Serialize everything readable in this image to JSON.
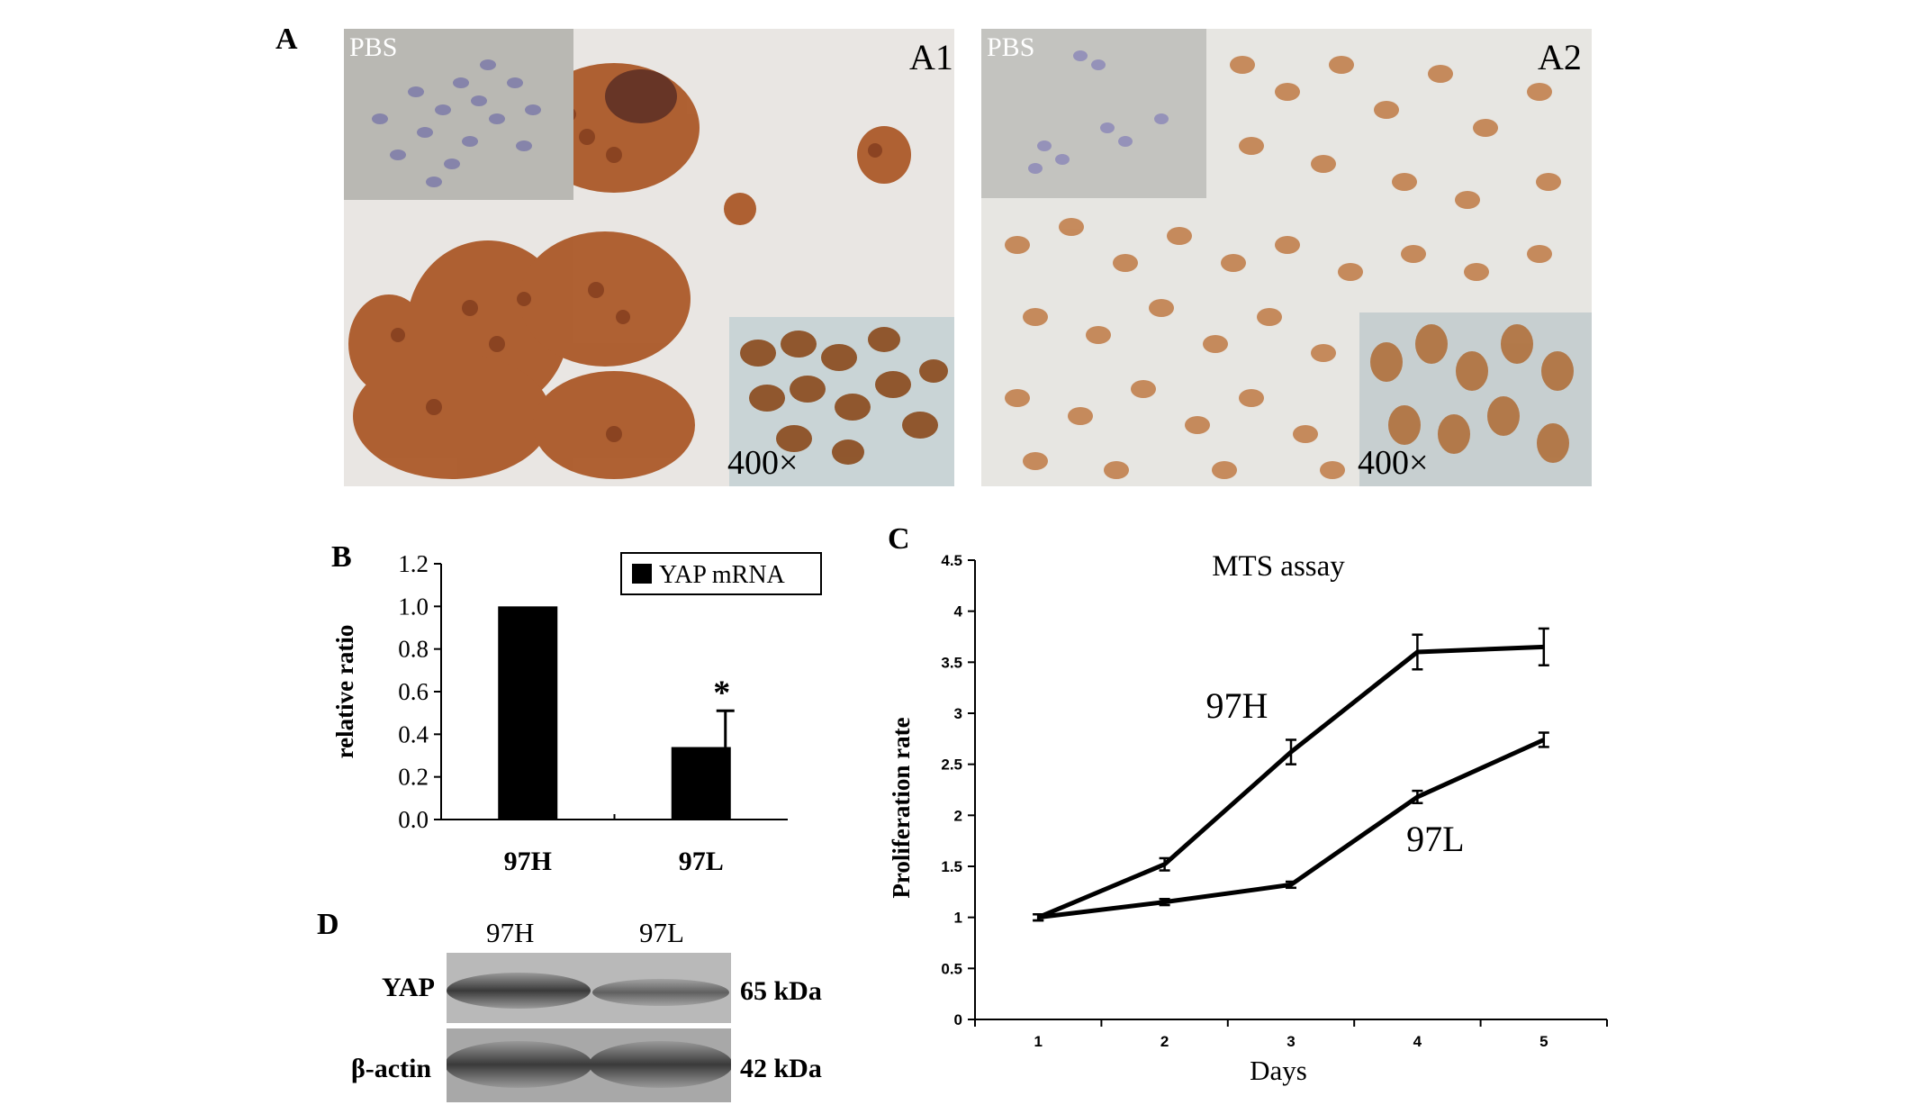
{
  "panels": {
    "A": {
      "letter": "A",
      "images": [
        {
          "label": "A1",
          "inset_label": "PBS",
          "magnification": "400×"
        },
        {
          "label": "A2",
          "inset_label": "PBS",
          "magnification": "400×"
        }
      ]
    },
    "B": {
      "letter": "B"
    },
    "C": {
      "letter": "C"
    },
    "D": {
      "letter": "D",
      "lanes": [
        "97H",
        "97L"
      ],
      "rows": [
        {
          "protein": "YAP",
          "size": "65 kDa"
        },
        {
          "protein": "β-actin",
          "size": "42 kDa"
        }
      ]
    }
  },
  "chart_data": [
    {
      "type": "bar",
      "title": "",
      "categories": [
        "97H",
        "97L"
      ],
      "series": [
        {
          "name": "YAP mRNA",
          "values": [
            1.0,
            0.34
          ],
          "errors": [
            0.0,
            0.17
          ]
        }
      ],
      "ylabel": "relative ratio",
      "ylim": [
        0.0,
        1.2
      ],
      "yticks": [
        "0.0",
        "0.2",
        "0.4",
        "0.6",
        "0.8",
        "1.0",
        "1.2"
      ],
      "annotations": [
        {
          "category": "97L",
          "text": "*"
        }
      ],
      "legend": "top-right",
      "colors": {
        "bar": "#000000"
      }
    },
    {
      "type": "line",
      "title": "MTS assay",
      "x": [
        1,
        2,
        3,
        4,
        5
      ],
      "xticks": [
        "1",
        "2",
        "3",
        "4",
        "5"
      ],
      "series": [
        {
          "name": "97H",
          "values": [
            1.0,
            1.52,
            2.62,
            3.6,
            3.65
          ],
          "errors": [
            0.03,
            0.06,
            0.12,
            0.17,
            0.18
          ]
        },
        {
          "name": "97L",
          "values": [
            1.0,
            1.15,
            1.32,
            2.18,
            2.74
          ],
          "errors": [
            0.03,
            0.03,
            0.03,
            0.06,
            0.07
          ]
        }
      ],
      "xlabel": "Days",
      "ylabel": "Proliferation rate",
      "ylim": [
        0,
        4.5
      ],
      "yticks": [
        "0",
        "0.5",
        "1",
        "1.5",
        "2",
        "2.5",
        "3",
        "3.5",
        "4",
        "4.5"
      ],
      "legend": "none",
      "colors": {
        "line": "#000000"
      }
    }
  ]
}
